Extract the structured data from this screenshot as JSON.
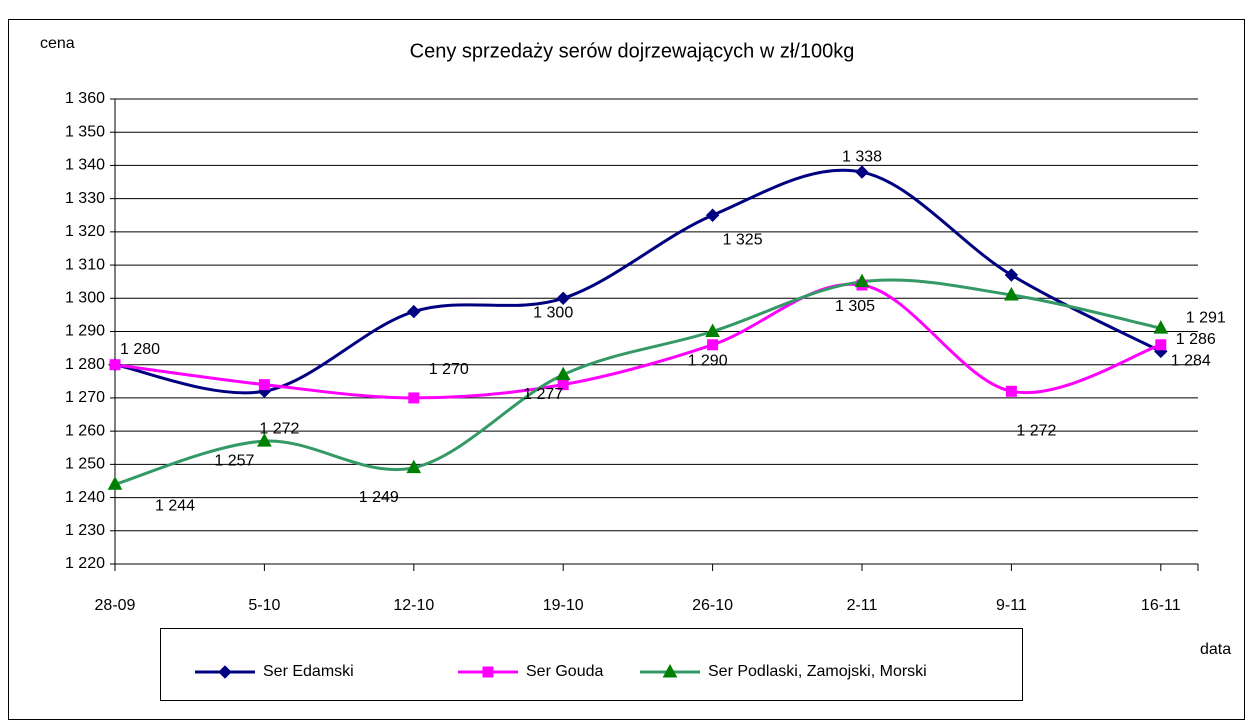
{
  "chart_data": {
    "type": "line",
    "title": "Ceny sprzedaży serów dojrzewających w zł/100kg",
    "y_label": "cena",
    "x_label": "data",
    "categories": [
      "28-09",
      "5-10",
      "12-10",
      "19-10",
      "26-10",
      "2-11",
      "9-11",
      "16-11"
    ],
    "series": [
      {
        "name": "Ser Edamski",
        "color": "#000080",
        "marker": "diamond",
        "values": [
          1280,
          1272,
          1296,
          1300,
          1325,
          1338,
          1307,
          1284
        ],
        "value_labels": [
          "1 280",
          "1 272",
          null,
          "1 300",
          "1 325",
          "1 338",
          null,
          "1 284"
        ]
      },
      {
        "name": "Ser Gouda",
        "color": "#ff00ff",
        "marker": "square",
        "values": [
          1280,
          1274,
          1270,
          1274,
          1286,
          1304,
          1272,
          1286
        ],
        "value_labels": [
          null,
          null,
          "1 270",
          null,
          null,
          null,
          "1 272",
          "1 286"
        ]
      },
      {
        "name": "Ser Podlaski, Zamojski, Morski",
        "color": "#339966",
        "marker": "triangle",
        "values": [
          1244,
          1257,
          1249,
          1277,
          1290,
          1305,
          1301,
          1291
        ],
        "value_labels": [
          "1 244",
          "1 257",
          "1 249",
          "1 277",
          "1 290",
          "1 305",
          null,
          "1 291"
        ]
      }
    ],
    "ylim": [
      1220,
      1360
    ],
    "yticks": [
      {
        "value": 1220,
        "label": "1 220"
      },
      {
        "value": 1230,
        "label": "1 230"
      },
      {
        "value": 1240,
        "label": "1 240"
      },
      {
        "value": 1250,
        "label": "1 250"
      },
      {
        "value": 1260,
        "label": "1 260"
      },
      {
        "value": 1270,
        "label": "1 270"
      },
      {
        "value": 1280,
        "label": "1 280"
      },
      {
        "value": 1290,
        "label": "1 290"
      },
      {
        "value": 1300,
        "label": "1 300"
      },
      {
        "value": 1310,
        "label": "1 310"
      },
      {
        "value": 1320,
        "label": "1 320"
      },
      {
        "value": 1330,
        "label": "1 330"
      },
      {
        "value": 1340,
        "label": "1 340"
      },
      {
        "value": 1350,
        "label": "1 350"
      },
      {
        "value": 1360,
        "label": "1 360"
      }
    ],
    "grid": true,
    "smooth": true,
    "legend": "bottom"
  }
}
